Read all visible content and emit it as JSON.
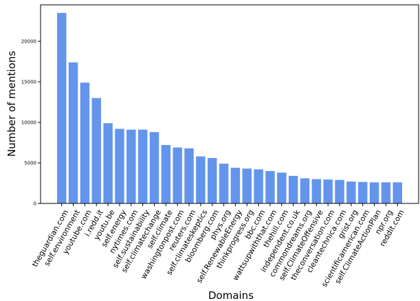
{
  "chart_data": {
    "type": "bar",
    "xlabel": "Domains",
    "ylabel": "Number of mentions",
    "ylim": [
      0,
      24500
    ],
    "yticks": [
      0,
      5000,
      10000,
      15000,
      20000
    ],
    "grid": false,
    "bar_color": "#6495ED",
    "categories": [
      "theguardian.com",
      "self.environment",
      "youtube.com",
      "i.redd.it",
      "youtu.be",
      "self.energy",
      "nytimes.com",
      "self.sustainability",
      "self.climatechange",
      "self.climate",
      "washingtonpost.com",
      "reuters.com",
      "self.climateskeptics",
      "bloomberg.com",
      "phys.org",
      "self.RenewableEnergy",
      "thinkprogress.org",
      "bbc.com",
      "wattsupwiththat.com",
      "thehill.com",
      "independent.co.uk",
      "commondreams.org",
      "self.ClimateOffensive",
      "theconversation.com",
      "cleantechnica.com",
      "grist.org",
      "scientificamerican.com",
      "self.ClimateActionPlan",
      "npr.org",
      "reddit.com"
    ],
    "values": [
      23500,
      17400,
      14900,
      13000,
      9900,
      9200,
      9100,
      9100,
      8800,
      7200,
      6900,
      6800,
      5800,
      5600,
      4900,
      4400,
      4300,
      4200,
      4000,
      3800,
      3400,
      3100,
      3000,
      2950,
      2900,
      2700,
      2650,
      2600,
      2600,
      2600
    ]
  }
}
